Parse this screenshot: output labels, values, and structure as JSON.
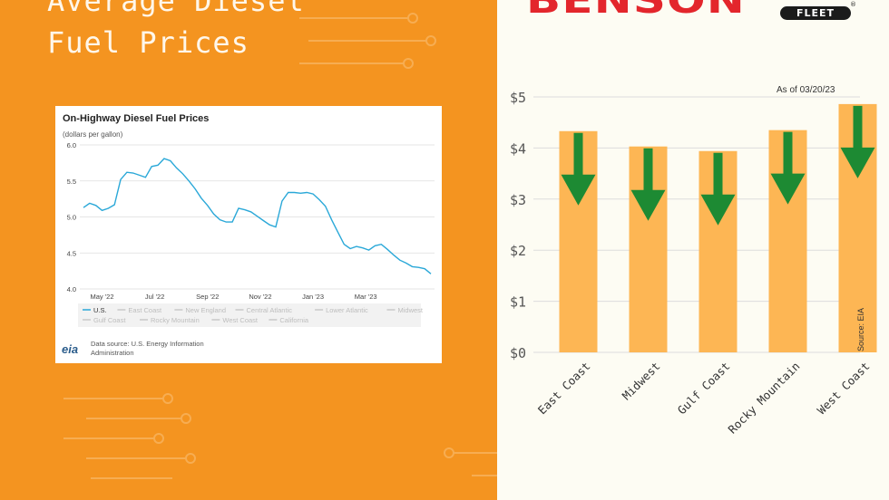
{
  "headline": {
    "line1": "Average Diesel",
    "line2": "Fuel Prices"
  },
  "brand": {
    "logo_text": "BENSON",
    "badge": "FLEET",
    "reg": "®"
  },
  "colors": {
    "background_orange": "#f49420",
    "bar": "#fdb654",
    "arrow": "#1d8a33",
    "line": "#2aa8d8",
    "logo_red": "#e3262c"
  },
  "chart_data": [
    {
      "type": "line",
      "title": "On-Highway Diesel Fuel Prices",
      "subtitle": "(dollars per gallon)",
      "yticks": [
        "6.0",
        "5.5",
        "5.0",
        "4.5",
        "4.0"
      ],
      "ylim": [
        4.0,
        6.0
      ],
      "xticks": [
        {
          "label": "May '22",
          "at": 3
        },
        {
          "label": "Jul '22",
          "at": 11.5
        },
        {
          "label": "Sep '22",
          "at": 20
        },
        {
          "label": "Nov '22",
          "at": 28.5
        },
        {
          "label": "Jan '23",
          "at": 37
        },
        {
          "label": "Mar '23",
          "at": 45.5
        }
      ],
      "legend": [
        "U.S.",
        "East Coast",
        "New England",
        "Central Atlantic",
        "Lower Atlantic",
        "Midwest",
        "Gulf Coast",
        "Rocky Mountain",
        "West Coast",
        "California"
      ],
      "series": [
        {
          "name": "U.S.",
          "values": [
            5.13,
            5.19,
            5.16,
            5.09,
            5.12,
            5.17,
            5.52,
            5.62,
            5.61,
            5.58,
            5.55,
            5.7,
            5.72,
            5.81,
            5.78,
            5.68,
            5.6,
            5.5,
            5.39,
            5.26,
            5.16,
            5.04,
            4.96,
            4.93,
            4.93,
            5.12,
            5.1,
            5.07,
            5.01,
            4.95,
            4.89,
            4.86,
            5.22,
            5.34,
            5.34,
            5.33,
            5.34,
            5.32,
            5.24,
            5.15,
            4.96,
            4.79,
            4.62,
            4.56,
            4.59,
            4.57,
            4.54,
            4.6,
            4.62,
            4.55,
            4.47,
            4.4,
            4.36,
            4.31,
            4.3,
            4.28,
            4.21
          ]
        }
      ],
      "source_line1": "Data source: U.S. Energy Information",
      "source_line2": "Administration",
      "source_logo": "eia"
    },
    {
      "type": "bar",
      "annotation": "As of 03/20/23",
      "source": "Source: EIA",
      "ylim": [
        0,
        5
      ],
      "yticks": [
        "$0",
        "$1",
        "$2",
        "$3",
        "$4",
        "$5"
      ],
      "categories": [
        "East Coast",
        "Midwest",
        "Gulf Coast",
        "Rocky Mountain",
        "West Coast"
      ],
      "values": [
        4.33,
        4.03,
        3.94,
        4.35,
        4.86
      ]
    }
  ]
}
